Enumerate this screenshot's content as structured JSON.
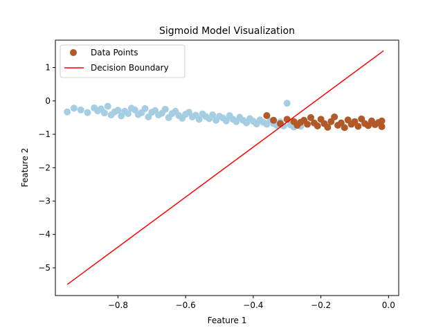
{
  "chart_data": {
    "type": "scatter",
    "title": "Sigmoid Model Visualization",
    "xlabel": "Feature 1",
    "ylabel": "Feature 2",
    "xlim": [
      -0.985,
      0.03
    ],
    "ylim": [
      -5.83,
      1.82
    ],
    "xticks": [
      -0.8,
      -0.6,
      -0.4,
      -0.2,
      0.0
    ],
    "xtick_labels": [
      "−0.8",
      "−0.6",
      "−0.4",
      "−0.2",
      "0.0"
    ],
    "yticks": [
      1,
      0,
      -1,
      -2,
      -3,
      -4,
      -5
    ],
    "ytick_labels": [
      "1",
      "0",
      "−1",
      "−2",
      "−3",
      "−4",
      "−5"
    ],
    "grid": false,
    "legend_position": "upper-left",
    "legend": [
      "Data Points",
      "Decision Boundary"
    ],
    "series": [
      {
        "name": "Data Points",
        "kind": "scatter",
        "classes": [
          {
            "color": "#a6cee3",
            "points": [
              [
                -0.95,
                -0.33
              ],
              [
                -0.93,
                -0.22
              ],
              [
                -0.91,
                -0.27
              ],
              [
                -0.89,
                -0.35
              ],
              [
                -0.87,
                -0.21
              ],
              [
                -0.86,
                -0.3
              ],
              [
                -0.85,
                -0.24
              ],
              [
                -0.84,
                -0.36
              ],
              [
                -0.83,
                -0.16
              ],
              [
                -0.82,
                -0.42
              ],
              [
                -0.81,
                -0.33
              ],
              [
                -0.8,
                -0.28
              ],
              [
                -0.79,
                -0.45
              ],
              [
                -0.78,
                -0.31
              ],
              [
                -0.77,
                -0.38
              ],
              [
                -0.76,
                -0.22
              ],
              [
                -0.75,
                -0.27
              ],
              [
                -0.74,
                -0.41
              ],
              [
                -0.73,
                -0.35
              ],
              [
                -0.72,
                -0.23
              ],
              [
                -0.71,
                -0.48
              ],
              [
                -0.7,
                -0.34
              ],
              [
                -0.69,
                -0.29
              ],
              [
                -0.68,
                -0.42
              ],
              [
                -0.67,
                -0.37
              ],
              [
                -0.66,
                -0.25
              ],
              [
                -0.65,
                -0.5
              ],
              [
                -0.64,
                -0.38
              ],
              [
                -0.63,
                -0.31
              ],
              [
                -0.62,
                -0.44
              ],
              [
                -0.61,
                -0.52
              ],
              [
                -0.6,
                -0.4
              ],
              [
                -0.59,
                -0.34
              ],
              [
                -0.58,
                -0.48
              ],
              [
                -0.57,
                -0.43
              ],
              [
                -0.56,
                -0.55
              ],
              [
                -0.55,
                -0.39
              ],
              [
                -0.54,
                -0.47
              ],
              [
                -0.53,
                -0.53
              ],
              [
                -0.52,
                -0.42
              ],
              [
                -0.51,
                -0.58
              ],
              [
                -0.5,
                -0.46
              ],
              [
                -0.49,
                -0.51
              ],
              [
                -0.48,
                -0.6
              ],
              [
                -0.47,
                -0.44
              ],
              [
                -0.46,
                -0.55
              ],
              [
                -0.45,
                -0.62
              ],
              [
                -0.44,
                -0.49
              ],
              [
                -0.43,
                -0.58
              ],
              [
                -0.42,
                -0.66
              ],
              [
                -0.41,
                -0.53
              ],
              [
                -0.4,
                -0.61
              ],
              [
                -0.39,
                -0.69
              ],
              [
                -0.38,
                -0.57
              ],
              [
                -0.37,
                -0.64
              ],
              [
                -0.36,
                -0.7
              ],
              [
                -0.35,
                -0.6
              ],
              [
                -0.34,
                -0.68
              ],
              [
                -0.33,
                -0.73
              ],
              [
                -0.32,
                -0.63
              ],
              [
                -0.31,
                -0.75
              ],
              [
                -0.3,
                -0.07
              ],
              [
                -0.29,
                -0.72
              ],
              [
                -0.28,
                -0.78
              ],
              [
                -0.27,
                -0.69
              ],
              [
                -0.26,
                -0.76
              ]
            ]
          },
          {
            "color": "#b15928",
            "points": [
              [
                -0.36,
                -0.44
              ],
              [
                -0.34,
                -0.58
              ],
              [
                -0.32,
                -0.68
              ],
              [
                -0.3,
                -0.55
              ],
              [
                -0.28,
                -0.62
              ],
              [
                -0.27,
                -0.73
              ],
              [
                -0.26,
                -0.64
              ],
              [
                -0.25,
                -0.58
              ],
              [
                -0.24,
                -0.7
              ],
              [
                -0.23,
                -0.5
              ],
              [
                -0.22,
                -0.66
              ],
              [
                -0.21,
                -0.75
              ],
              [
                -0.2,
                -0.55
              ],
              [
                -0.19,
                -0.68
              ],
              [
                -0.18,
                -0.79
              ],
              [
                -0.17,
                -0.62
              ],
              [
                -0.16,
                -0.48
              ],
              [
                -0.15,
                -0.73
              ],
              [
                -0.14,
                -0.66
              ],
              [
                -0.13,
                -0.8
              ],
              [
                -0.12,
                -0.57
              ],
              [
                -0.11,
                -0.7
              ],
              [
                -0.1,
                -0.62
              ],
              [
                -0.09,
                -0.76
              ],
              [
                -0.08,
                -0.54
              ],
              [
                -0.07,
                -0.68
              ],
              [
                -0.06,
                -0.74
              ],
              [
                -0.05,
                -0.6
              ],
              [
                -0.04,
                -0.71
              ],
              [
                -0.03,
                -0.65
              ],
              [
                -0.02,
                -0.77
              ],
              [
                -0.02,
                -0.6
              ]
            ]
          }
        ]
      },
      {
        "name": "Decision Boundary",
        "kind": "line",
        "color": "#ff0000",
        "x": [
          -0.95,
          -0.015
        ],
        "y": [
          -5.5,
          1.5
        ]
      }
    ]
  }
}
